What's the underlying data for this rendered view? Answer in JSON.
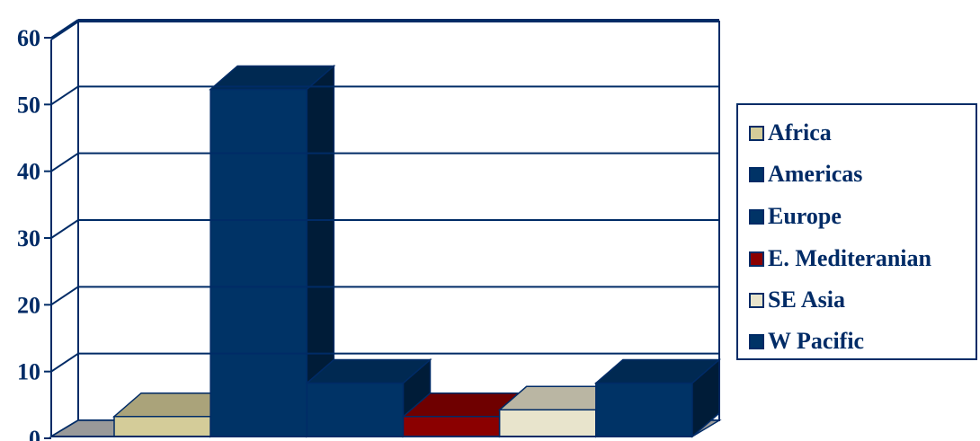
{
  "chart_data": {
    "type": "bar",
    "style": "3d-stepped",
    "categories": [
      "Africa",
      "Americas",
      "Europe",
      "E. Mediteranian",
      "SE Asia",
      "W Pacific"
    ],
    "series": [
      {
        "name": "Africa",
        "value": 3,
        "color": "#d4cc99"
      },
      {
        "name": "Americas",
        "value": 52,
        "color": "#003366"
      },
      {
        "name": "Europe",
        "value": 8,
        "color": "#003366"
      },
      {
        "name": "E. Mediteranian",
        "value": 3,
        "color": "#8b0000"
      },
      {
        "name": "SE Asia",
        "value": 4,
        "color": "#e8e4cc"
      },
      {
        "name": "W Pacific",
        "value": 8,
        "color": "#003366"
      }
    ],
    "ylim": [
      0,
      60
    ],
    "yticks": [
      "0",
      "10",
      "20",
      "30",
      "40",
      "50",
      "60"
    ],
    "grid": true,
    "legend_position": "right",
    "title": "",
    "xlabel": "",
    "ylabel": ""
  },
  "legend": {
    "items": [
      {
        "label": "Africa",
        "color": "#d4cc99"
      },
      {
        "label": "Americas",
        "color": "#003366"
      },
      {
        "label": "Europe",
        "color": "#003366"
      },
      {
        "label": "E. Mediteranian",
        "color": "#8b0000"
      },
      {
        "label": "SE Asia",
        "color": "#e8e4cc"
      },
      {
        "label": "W Pacific",
        "color": "#003366"
      }
    ]
  },
  "colors": {
    "axis": "#002b66",
    "floor": "#808080",
    "floor_top": "#999999"
  }
}
